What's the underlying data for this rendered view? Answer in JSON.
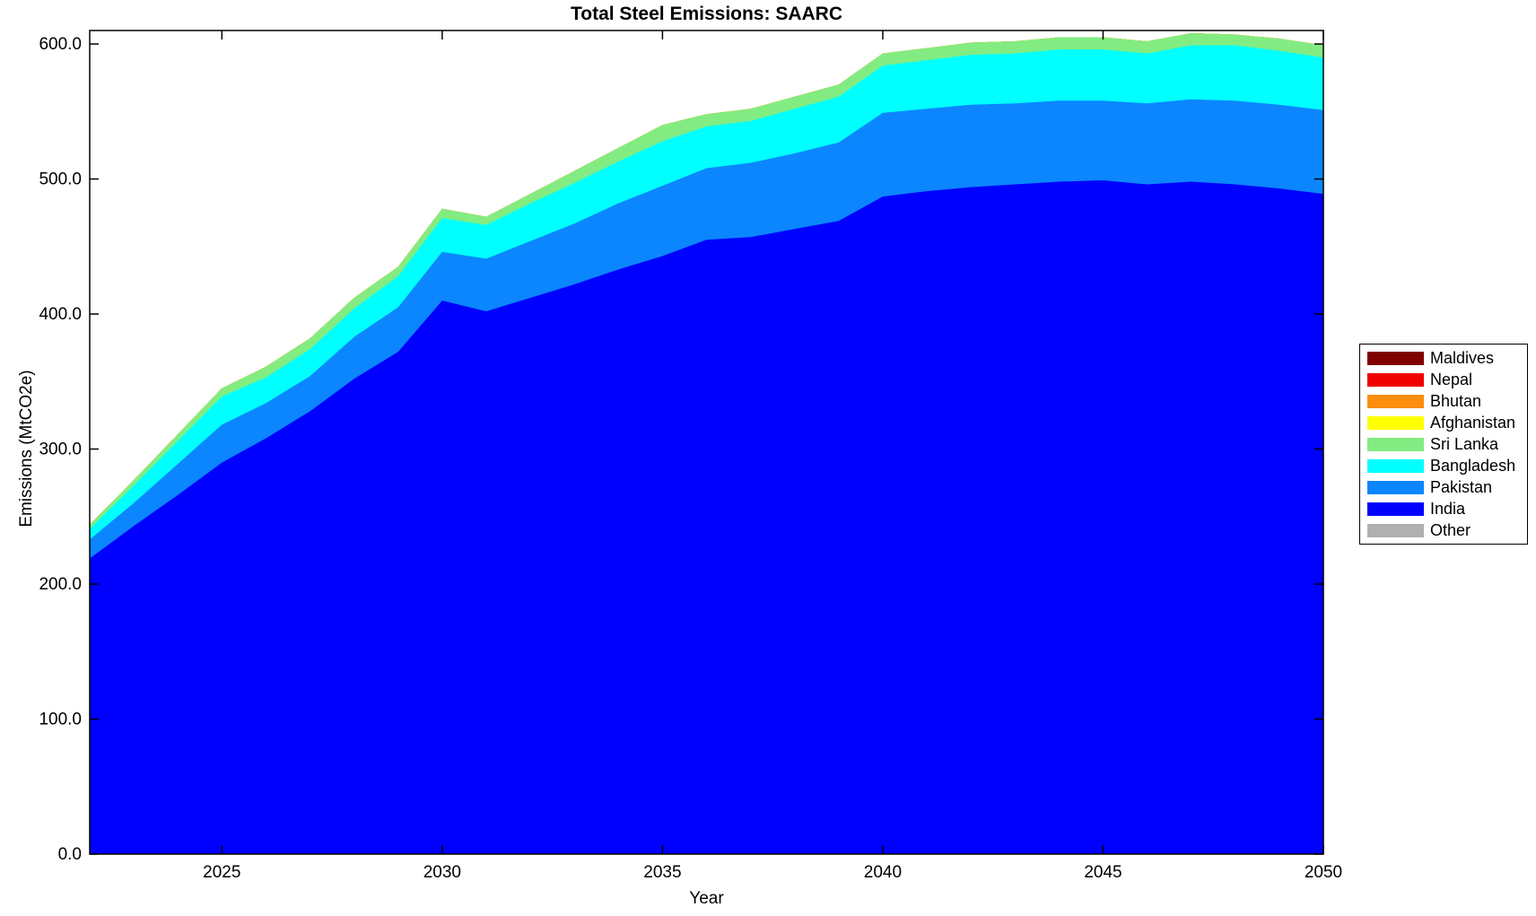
{
  "chart_data": {
    "type": "area",
    "stacked": true,
    "title": "Total Steel Emissions: SAARC",
    "xlabel": "Year",
    "ylabel": "Emissions (MtCO2e)",
    "x": [
      2022,
      2023,
      2024,
      2025,
      2026,
      2027,
      2028,
      2029,
      2030,
      2031,
      2032,
      2033,
      2034,
      2035,
      2036,
      2037,
      2038,
      2039,
      2040,
      2041,
      2042,
      2043,
      2044,
      2045,
      2046,
      2047,
      2048,
      2049,
      2050
    ],
    "xlim": [
      2022,
      2050
    ],
    "ylim": [
      0,
      610
    ],
    "xticks": [
      2025,
      2030,
      2035,
      2040,
      2045,
      2050
    ],
    "yticks": [
      0,
      100,
      200,
      300,
      400,
      500,
      600
    ],
    "ytick_decimals": 1,
    "grid": false,
    "legend_position": "right-outside",
    "legend_order": [
      "Maldives",
      "Nepal",
      "Bhutan",
      "Afghanistan",
      "Sri Lanka",
      "Bangladesh",
      "Pakistan",
      "India",
      "Other"
    ],
    "series": [
      {
        "name": "Other",
        "color": "#B0B0B0",
        "values": [
          0,
          0,
          0,
          0,
          0,
          0,
          0,
          0,
          0,
          0,
          0,
          0,
          0,
          0,
          0,
          0,
          0,
          0,
          0,
          0,
          0,
          0,
          0,
          0,
          0,
          0,
          0,
          0,
          0
        ]
      },
      {
        "name": "India",
        "color": "#0000FF",
        "values": [
          219,
          243,
          266,
          290,
          308,
          328,
          352,
          372,
          410,
          402,
          412,
          422,
          433,
          443,
          455,
          457,
          463,
          469,
          487,
          491,
          494,
          496,
          498,
          499,
          496,
          498,
          496,
          493,
          489
        ]
      },
      {
        "name": "Pakistan",
        "color": "#0B86FF",
        "values": [
          14,
          17,
          23,
          28,
          26,
          26,
          31,
          33,
          36,
          39,
          42,
          45,
          49,
          52,
          53,
          55,
          56,
          58,
          62,
          61,
          61,
          60,
          60,
          59,
          60,
          61,
          62,
          62,
          62
        ]
      },
      {
        "name": "Bangladesh",
        "color": "#00FFFF",
        "values": [
          8,
          13,
          17,
          21,
          19,
          20,
          21,
          23,
          25,
          25,
          28,
          30,
          31,
          33,
          31,
          31,
          33,
          34,
          35,
          36,
          37,
          37,
          38,
          38,
          37,
          40,
          41,
          40,
          39
        ]
      },
      {
        "name": "Sri Lanka",
        "color": "#82EC82",
        "values": [
          3,
          4,
          5,
          6,
          8,
          8,
          8,
          7,
          7,
          6,
          7,
          9,
          10,
          12,
          9,
          9,
          9,
          9,
          9,
          9,
          9,
          9,
          9,
          9,
          9,
          9,
          8,
          9,
          9
        ]
      },
      {
        "name": "Afghanistan",
        "color": "#FFFF00",
        "values": [
          0,
          0,
          0,
          0,
          0,
          0,
          0,
          0,
          0,
          0,
          0,
          0,
          0,
          0,
          0,
          0,
          0,
          0,
          0,
          0,
          0,
          0,
          0,
          0,
          0,
          0,
          0,
          0,
          0
        ]
      },
      {
        "name": "Bhutan",
        "color": "#FB8E0D",
        "values": [
          0,
          0,
          0,
          0,
          0,
          0,
          0,
          0,
          0,
          0,
          0,
          0,
          0,
          0,
          0,
          0,
          0,
          0,
          0,
          0,
          0,
          0,
          0,
          0,
          0,
          0,
          0,
          0,
          0
        ]
      },
      {
        "name": "Nepal",
        "color": "#F10000",
        "values": [
          0,
          0,
          0,
          0,
          0,
          0,
          0,
          0,
          0,
          0,
          0,
          0,
          0,
          0,
          0,
          0,
          0,
          0,
          0,
          0,
          0,
          0,
          0,
          0,
          0,
          0,
          0,
          0,
          0
        ]
      },
      {
        "name": "Maldives",
        "color": "#800000",
        "values": [
          0,
          0,
          0,
          0,
          0,
          0,
          0,
          0,
          0,
          0,
          0,
          0,
          0,
          0,
          0,
          0,
          0,
          0,
          0,
          0,
          0,
          0,
          0,
          0,
          0,
          0,
          0,
          0,
          0
        ]
      }
    ]
  },
  "colors": {
    "axis": "#000000",
    "text": "#000000",
    "background": "#FFFFFF"
  }
}
